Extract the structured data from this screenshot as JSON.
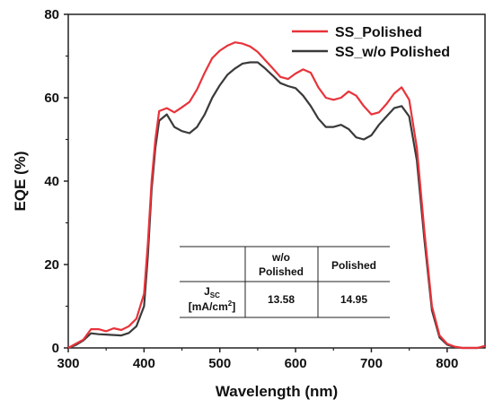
{
  "chart_data": {
    "type": "line",
    "xlabel": "Wavelength (nm)",
    "ylabel": "EQE (%)",
    "xlim": [
      300,
      850
    ],
    "ylim": [
      0,
      80
    ],
    "xticks": [
      "300",
      "400",
      "500",
      "600",
      "700",
      "800"
    ],
    "yticks": [
      "0",
      "20",
      "40",
      "60",
      "80"
    ],
    "legend_position": "top-right",
    "grid": false,
    "series": [
      {
        "name": "SS_Polished",
        "color": "#e8333a",
        "x": [
          300,
          310,
          320,
          330,
          340,
          350,
          360,
          370,
          380,
          390,
          400,
          405,
          410,
          415,
          420,
          430,
          440,
          450,
          460,
          470,
          480,
          490,
          500,
          510,
          520,
          530,
          540,
          550,
          560,
          570,
          580,
          590,
          600,
          610,
          620,
          630,
          640,
          650,
          660,
          670,
          680,
          690,
          700,
          710,
          720,
          730,
          740,
          750,
          760,
          770,
          780,
          790,
          800,
          810,
          820,
          830,
          840,
          850
        ],
        "y": [
          0,
          1,
          2,
          4.5,
          4.5,
          4,
          4.7,
          4.3,
          5.2,
          7,
          13,
          25,
          40,
          50,
          56.8,
          57.5,
          56.5,
          57.7,
          59,
          62,
          66,
          69.5,
          71.3,
          72.5,
          73.3,
          73,
          72.3,
          71,
          69,
          67,
          65,
          64.5,
          65.8,
          66.8,
          66,
          62.5,
          60,
          59.5,
          60,
          61.5,
          60.5,
          58,
          56,
          56.5,
          58.5,
          61,
          62.5,
          59.5,
          48,
          28,
          10,
          3,
          1,
          0.3,
          0,
          0,
          0,
          0.5
        ]
      },
      {
        "name": "SS_w/o Polished",
        "color": "#3a3a3a",
        "x": [
          300,
          310,
          320,
          330,
          340,
          350,
          360,
          370,
          380,
          390,
          400,
          405,
          410,
          415,
          420,
          430,
          440,
          450,
          460,
          470,
          480,
          490,
          500,
          510,
          520,
          530,
          540,
          550,
          560,
          570,
          580,
          590,
          600,
          610,
          620,
          630,
          640,
          650,
          660,
          670,
          680,
          690,
          700,
          710,
          720,
          730,
          740,
          750,
          760,
          770,
          780,
          790,
          800,
          810,
          820,
          830,
          840,
          850
        ],
        "y": [
          0,
          0.7,
          1.8,
          3.5,
          3.3,
          3.2,
          3.1,
          3.0,
          3.6,
          5.2,
          10,
          22,
          38,
          48,
          54.5,
          56,
          53,
          52,
          51.5,
          53,
          56,
          60,
          63,
          65.5,
          67,
          68.2,
          68.5,
          68.5,
          67,
          65.3,
          63.5,
          62.8,
          62.3,
          60.5,
          58,
          55,
          53,
          53,
          53.5,
          52.5,
          50.5,
          50,
          51,
          53.5,
          55.5,
          57.5,
          58,
          55.5,
          45,
          26,
          9,
          2.5,
          0.8,
          0.2,
          0,
          0,
          0,
          0.3
        ]
      }
    ],
    "inset_table": {
      "headers": [
        "",
        "w/o Polished",
        "Polished"
      ],
      "row_label_main": "J",
      "row_label_sub": "SC",
      "row_label_unit_pre": "[mA/cm",
      "row_label_unit_sup": "2",
      "row_label_unit_post": "]",
      "values": [
        "13.58",
        "14.95"
      ]
    }
  }
}
